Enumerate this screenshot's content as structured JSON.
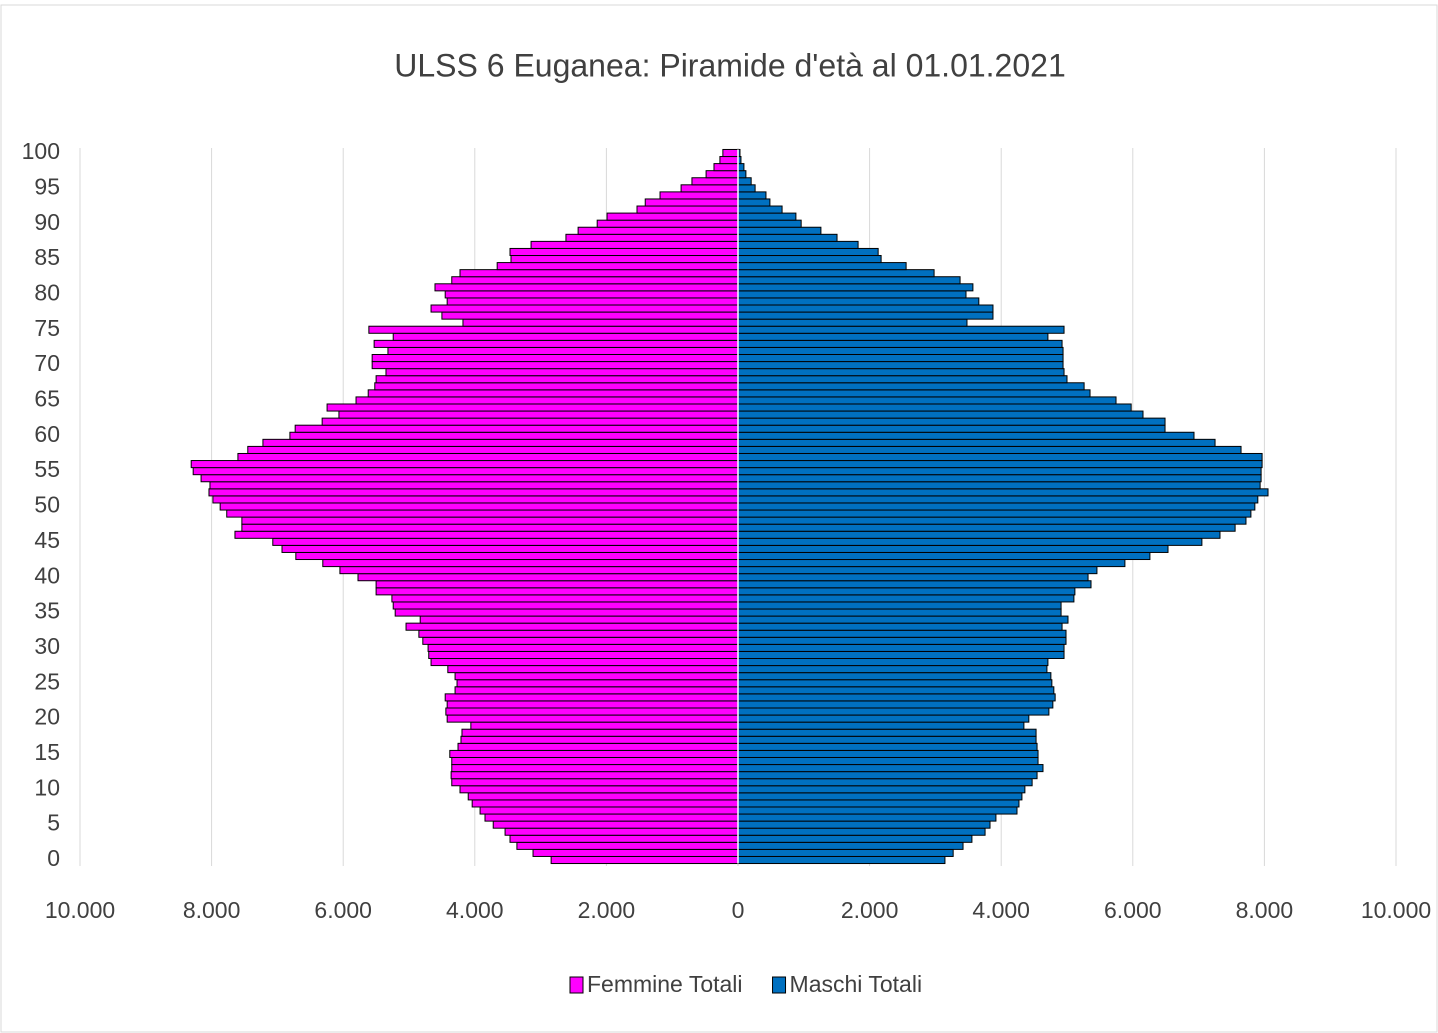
{
  "chart_data": {
    "type": "pyramid",
    "title": "ULSS 6 Euganea: Piramide d'età al 01.01.2021",
    "categories": [
      0,
      null,
      null,
      null,
      null,
      5,
      null,
      null,
      null,
      null,
      10,
      null,
      null,
      null,
      null,
      15,
      null,
      null,
      null,
      null,
      20,
      null,
      null,
      null,
      null,
      25,
      null,
      null,
      null,
      null,
      30,
      null,
      null,
      null,
      null,
      35,
      null,
      null,
      null,
      null,
      40,
      null,
      null,
      null,
      null,
      45,
      null,
      null,
      null,
      null,
      50,
      null,
      null,
      null,
      null,
      55,
      null,
      null,
      null,
      null,
      60,
      null,
      null,
      null,
      null,
      65,
      null,
      null,
      null,
      null,
      70,
      null,
      null,
      null,
      null,
      75,
      null,
      null,
      null,
      null,
      80,
      null,
      null,
      null,
      null,
      85,
      null,
      null,
      null,
      null,
      90,
      null,
      null,
      null,
      null,
      95,
      null,
      null,
      null,
      null,
      100
    ],
    "series": [
      {
        "name": "Femmine Totali",
        "color": "#ff00ff",
        "values": [
          2840,
          3115,
          3360,
          3465,
          3540,
          3720,
          3845,
          3920,
          4040,
          4100,
          4225,
          4350,
          4360,
          4350,
          4350,
          4380,
          4255,
          4210,
          4195,
          4060,
          4420,
          4440,
          4420,
          4450,
          4300,
          4270,
          4300,
          4410,
          4665,
          4700,
          4710,
          4790,
          4850,
          5045,
          4830,
          5210,
          5240,
          5260,
          5500,
          5500,
          5775,
          6050,
          6310,
          6720,
          6930,
          7070,
          7645,
          7540,
          7540,
          7770,
          7870,
          7980,
          8040,
          8025,
          8160,
          8280,
          8310,
          7600,
          7450,
          7220,
          6810,
          6730,
          6320,
          6065,
          6245,
          5805,
          5620,
          5520,
          5500,
          5350,
          5560,
          5560,
          5320,
          5530,
          5240,
          5610,
          4180,
          4500,
          4665,
          4420,
          4450,
          4605,
          4350,
          4225,
          3660,
          3450,
          3465,
          3145,
          2615,
          2430,
          2140,
          1990,
          1535,
          1410,
          1185,
          865,
          700,
          485,
          365,
          275,
          230
        ]
      },
      {
        "name": "Maschi Totali",
        "color": "#0070c0",
        "values": [
          3145,
          3270,
          3420,
          3555,
          3755,
          3830,
          3920,
          4240,
          4270,
          4315,
          4360,
          4470,
          4545,
          4635,
          4560,
          4560,
          4545,
          4530,
          4530,
          4345,
          4420,
          4725,
          4785,
          4820,
          4800,
          4770,
          4755,
          4695,
          4710,
          4955,
          4955,
          4985,
          4985,
          4925,
          5015,
          4910,
          4910,
          5105,
          5120,
          5365,
          5320,
          5455,
          5880,
          6260,
          6535,
          7050,
          7325,
          7555,
          7720,
          7795,
          7855,
          7900,
          8055,
          7935,
          7950,
          7950,
          7965,
          7965,
          7645,
          7250,
          6930,
          6490,
          6490,
          6155,
          5975,
          5745,
          5350,
          5260,
          5000,
          4955,
          4940,
          4940,
          4940,
          4925,
          4710,
          4955,
          3480,
          3875,
          3875,
          3660,
          3465,
          3570,
          3375,
          2980,
          2555,
          2175,
          2130,
          1825,
          1505,
          1260,
          960,
          880,
          670,
          485,
          425,
          260,
          200,
          120,
          90,
          45,
          30
        ]
      }
    ],
    "xlim": [
      -10000,
      10000
    ],
    "xticks": [
      {
        "value": -10000,
        "label": "10.000"
      },
      {
        "value": -8000,
        "label": "8.000"
      },
      {
        "value": -6000,
        "label": "6.000"
      },
      {
        "value": -4000,
        "label": "4.000"
      },
      {
        "value": -2000,
        "label": "2.000"
      },
      0,
      {
        "value": 2000,
        "label": "2.000"
      },
      {
        "value": 4000,
        "label": "4.000"
      },
      {
        "value": 6000,
        "label": "6.000"
      },
      {
        "value": 8000,
        "label": "8.000"
      },
      {
        "value": 10000,
        "label": "10.000"
      }
    ],
    "grid": true,
    "legend": "bottom"
  }
}
